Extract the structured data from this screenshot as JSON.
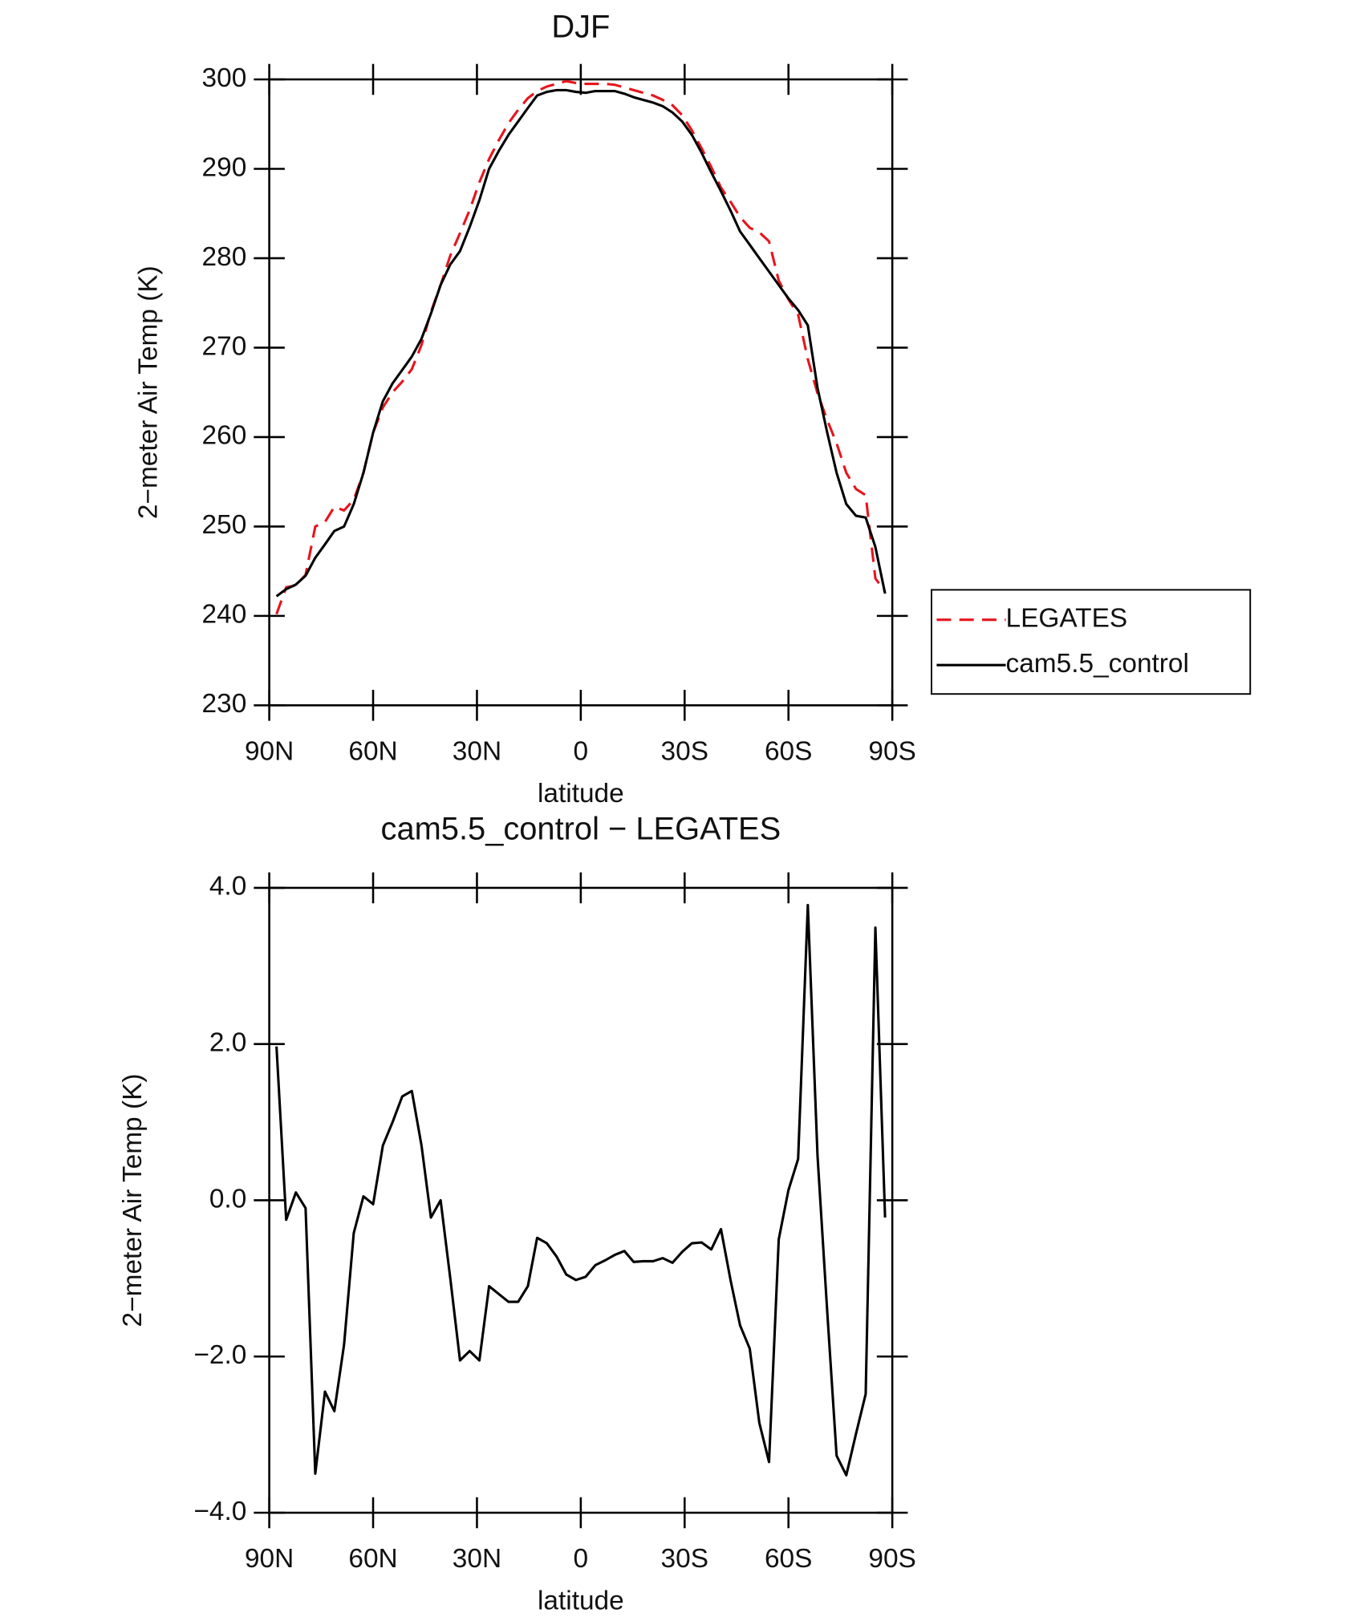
{
  "chart_data": [
    {
      "type": "line",
      "title": "DJF",
      "xlabel": "latitude",
      "ylabel": "2−meter Air Temp (K)",
      "x": [
        87.9,
        85.1,
        82.3,
        79.5,
        76.7,
        73.9,
        71.2,
        68.4,
        65.6,
        62.8,
        60.0,
        57.2,
        54.4,
        51.6,
        48.8,
        46.0,
        43.3,
        40.5,
        37.7,
        34.9,
        32.1,
        29.3,
        26.5,
        23.7,
        20.9,
        18.1,
        15.3,
        12.6,
        9.8,
        7.0,
        4.2,
        1.4,
        -1.4,
        -4.2,
        -7.0,
        -9.8,
        -12.6,
        -15.3,
        -18.1,
        -20.9,
        -23.7,
        -26.5,
        -29.3,
        -32.1,
        -34.9,
        -37.7,
        -40.5,
        -43.3,
        -46.0,
        -48.8,
        -51.6,
        -54.4,
        -57.2,
        -60.0,
        -62.8,
        -65.6,
        -68.4,
        -71.2,
        -73.9,
        -76.7,
        -79.5,
        -82.3,
        -85.1,
        -87.9
      ],
      "series": [
        {
          "name": "LEGATES",
          "color": "#e8141c",
          "dash": true,
          "values": [
            240.2,
            243.2,
            243.4,
            244.6,
            250.0,
            250.5,
            252.2,
            251.8,
            253.0,
            256.0,
            260.5,
            263.3,
            265.0,
            266.2,
            267.6,
            270.3,
            274.0,
            277.0,
            280.3,
            282.8,
            285.4,
            288.5,
            291.1,
            293.2,
            295.1,
            296.6,
            297.9,
            298.7,
            299.2,
            299.5,
            299.8,
            299.6,
            299.5,
            299.5,
            299.5,
            299.4,
            299.1,
            298.8,
            298.5,
            298.2,
            297.7,
            297.1,
            296.0,
            294.3,
            292.3,
            290.2,
            287.9,
            286.3,
            284.6,
            283.4,
            282.9,
            281.9,
            277.5,
            275.4,
            273.7,
            268.7,
            264.9,
            261.9,
            259.3,
            256.0,
            254.2,
            253.5,
            244.2,
            242.7
          ]
        },
        {
          "name": "cam5.5_control",
          "color": "#000000",
          "dash": false,
          "values": [
            242.2,
            243.0,
            243.5,
            244.5,
            246.5,
            248.0,
            249.5,
            250.0,
            252.5,
            256.0,
            260.5,
            264.0,
            266.0,
            267.5,
            269.0,
            271.0,
            273.8,
            277.0,
            279.3,
            280.8,
            283.5,
            286.5,
            290.0,
            292.0,
            293.8,
            295.3,
            296.8,
            298.2,
            298.6,
            298.8,
            298.8,
            298.6,
            298.5,
            298.7,
            298.7,
            298.7,
            298.4,
            298.0,
            297.7,
            297.4,
            297.0,
            296.3,
            295.3,
            293.8,
            291.8,
            289.6,
            287.5,
            285.3,
            283.0,
            281.5,
            280.0,
            278.5,
            277.0,
            275.5,
            274.2,
            272.5,
            265.5,
            260.5,
            256.0,
            252.5,
            251.2,
            251.0,
            247.7,
            242.5
          ]
        }
      ],
      "xlim": [
        90,
        -90
      ],
      "xticks": [
        {
          "value": 90,
          "label": "90N"
        },
        {
          "value": 60,
          "label": "60N"
        },
        {
          "value": 30,
          "label": "30N"
        },
        0,
        {
          "value": -30,
          "label": "30S"
        },
        {
          "value": -60,
          "label": "60S"
        },
        {
          "value": -90,
          "label": "90S"
        }
      ],
      "ylim": [
        230,
        300
      ],
      "yticks": [
        230,
        240,
        250,
        260,
        270,
        280,
        290,
        300
      ],
      "legend": "right"
    },
    {
      "type": "line",
      "title": "cam5.5_control − LEGATES",
      "xlabel": "latitude",
      "ylabel": "2−meter Air Temp (K)",
      "x": [
        87.9,
        85.1,
        82.3,
        79.5,
        76.7,
        73.9,
        71.2,
        68.4,
        65.6,
        62.8,
        60.0,
        57.2,
        54.4,
        51.6,
        48.8,
        46.0,
        43.3,
        40.5,
        37.7,
        34.9,
        32.1,
        29.3,
        26.5,
        23.7,
        20.9,
        18.1,
        15.3,
        12.6,
        9.8,
        7.0,
        4.2,
        1.4,
        -1.4,
        -4.2,
        -7.0,
        -9.8,
        -12.6,
        -15.3,
        -18.1,
        -20.9,
        -23.7,
        -26.5,
        -29.3,
        -32.1,
        -34.9,
        -37.7,
        -40.5,
        -43.3,
        -46.0,
        -48.8,
        -51.6,
        -54.4,
        -57.2,
        -60.0,
        -62.8,
        -65.6,
        -68.4,
        -71.2,
        -73.9,
        -76.7,
        -79.5,
        -82.3,
        -85.1,
        -87.9
      ],
      "values": [
        1.97,
        -0.25,
        0.1,
        -0.1,
        -3.5,
        -2.45,
        -2.7,
        -1.85,
        -0.42,
        0.05,
        -0.05,
        0.7,
        1.0,
        1.33,
        1.4,
        0.7,
        -0.22,
        0.0,
        -1.0,
        -2.05,
        -1.93,
        -2.05,
        -1.1,
        -1.2,
        -1.3,
        -1.3,
        -1.1,
        -0.48,
        -0.55,
        -0.72,
        -0.95,
        -1.02,
        -0.98,
        -0.83,
        -0.77,
        -0.7,
        -0.65,
        -0.79,
        -0.78,
        -0.78,
        -0.74,
        -0.8,
        -0.66,
        -0.55,
        -0.54,
        -0.63,
        -0.37,
        -1.03,
        -1.6,
        -1.9,
        -2.85,
        -3.35,
        -0.5,
        0.13,
        0.53,
        3.78,
        0.57,
        -1.42,
        -3.27,
        -3.52,
        -2.99,
        -2.48,
        3.49,
        -0.22
      ],
      "color": "#000000",
      "xlim": [
        90,
        -90
      ],
      "xticks": [
        {
          "value": 90,
          "label": "90N"
        },
        {
          "value": 60,
          "label": "60N"
        },
        {
          "value": 30,
          "label": "30N"
        },
        0,
        {
          "value": -30,
          "label": "30S"
        },
        {
          "value": -60,
          "label": "60S"
        },
        {
          "value": -90,
          "label": "90S"
        }
      ],
      "ylim": [
        -4,
        4
      ],
      "yticks": [
        {
          "value": -4,
          "label": "−4.0"
        },
        {
          "value": -2,
          "label": "−2.0"
        },
        {
          "value": 0,
          "label": "0.0"
        },
        {
          "value": 2,
          "label": "2.0"
        },
        {
          "value": 4,
          "label": "4.0"
        }
      ]
    }
  ]
}
